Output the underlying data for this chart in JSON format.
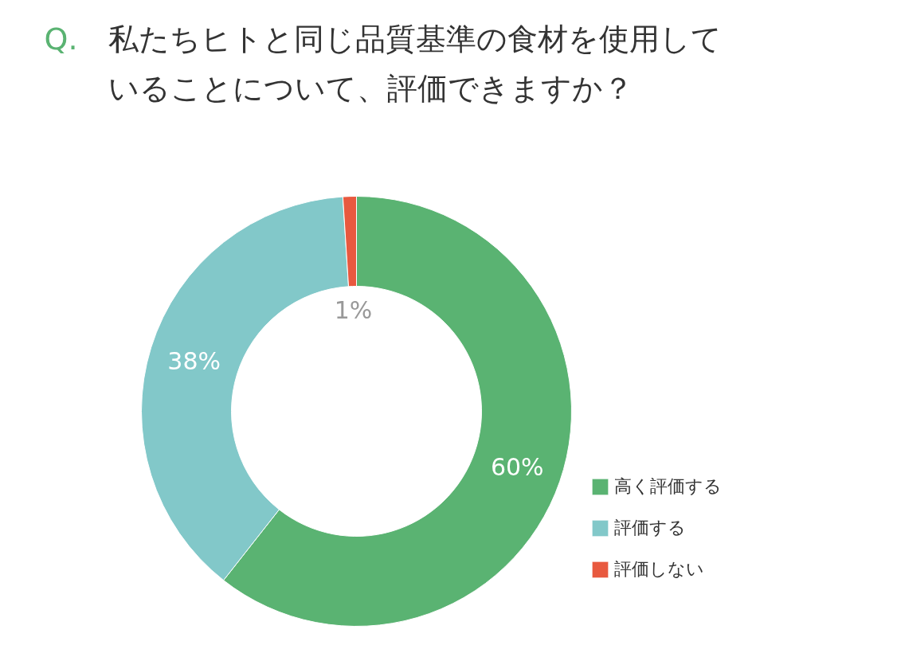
{
  "chart_data": {
    "type": "donut",
    "title": "Q. 私たちヒトと同じ品質基準の食材を使用していることについて、評価できますか？",
    "categories": [
      "高く評価する",
      "評価する",
      "評価しない"
    ],
    "values": [
      60,
      38,
      1
    ],
    "colors": [
      "#5ab372",
      "#82c8c9",
      "#e8593f"
    ],
    "value_labels": [
      "60%",
      "38%",
      "1%"
    ],
    "legend": "bottom right"
  }
}
